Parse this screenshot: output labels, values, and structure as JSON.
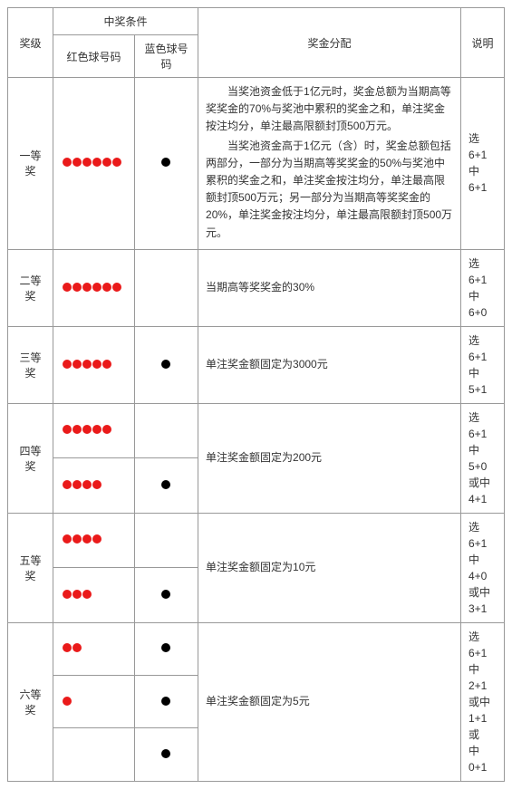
{
  "headers": {
    "level": "奖级",
    "condition": "中奖条件",
    "red": "红色球号码",
    "blue": "蓝色球号码",
    "distribution": "奖金分配",
    "note": "说明"
  },
  "colors": {
    "red_dot": "#ea1a1a",
    "black_dot": "#000000",
    "border": "#999999",
    "text": "#333333"
  },
  "dot_size": 10,
  "rows": [
    {
      "level": "一等奖",
      "sub": [
        {
          "red": 6,
          "blue": 1
        }
      ],
      "desc_paras": [
        "当奖池资金低于1亿元时，奖金总额为当期高等奖奖金的70%与奖池中累积的奖金之和，单注奖金按注均分，单注最高限额封顶500万元。",
        "当奖池资金高于1亿元（含）时，奖金总额包括两部分，一部分为当期高等奖奖金的50%与奖池中累积的奖金之和，单注奖金按注均分，单注最高限额封顶500万元；另一部分为当期高等奖奖金的20%，单注奖金按注均分，单注最高限额封顶500万元。"
      ],
      "note": "选6+1\n中6+1"
    },
    {
      "level": "二等奖",
      "sub": [
        {
          "red": 6,
          "blue": 0
        }
      ],
      "desc": "当期高等奖奖金的30%",
      "note": "选6+1\n中6+0"
    },
    {
      "level": "三等奖",
      "sub": [
        {
          "red": 5,
          "blue": 1
        }
      ],
      "desc": "单注奖金额固定为3000元",
      "note": "选6+1\n中5+1"
    },
    {
      "level": "四等奖",
      "sub": [
        {
          "red": 5,
          "blue": 0
        },
        {
          "red": 4,
          "blue": 1
        }
      ],
      "desc": "单注奖金额固定为200元",
      "note": "选6+1\n中5+0\n或中\n4+1"
    },
    {
      "level": "五等奖",
      "sub": [
        {
          "red": 4,
          "blue": 0
        },
        {
          "red": 3,
          "blue": 1
        }
      ],
      "desc": "单注奖金额固定为10元",
      "note": "选6+1\n中4+0\n或中\n3+1"
    },
    {
      "level": "六等奖",
      "sub": [
        {
          "red": 2,
          "blue": 1
        },
        {
          "red": 1,
          "blue": 1
        },
        {
          "red": 0,
          "blue": 1
        }
      ],
      "desc": "单注奖金额固定为5元",
      "note": "选6+1\n中2+1\n或中\n1+1或\n中0+1"
    }
  ]
}
